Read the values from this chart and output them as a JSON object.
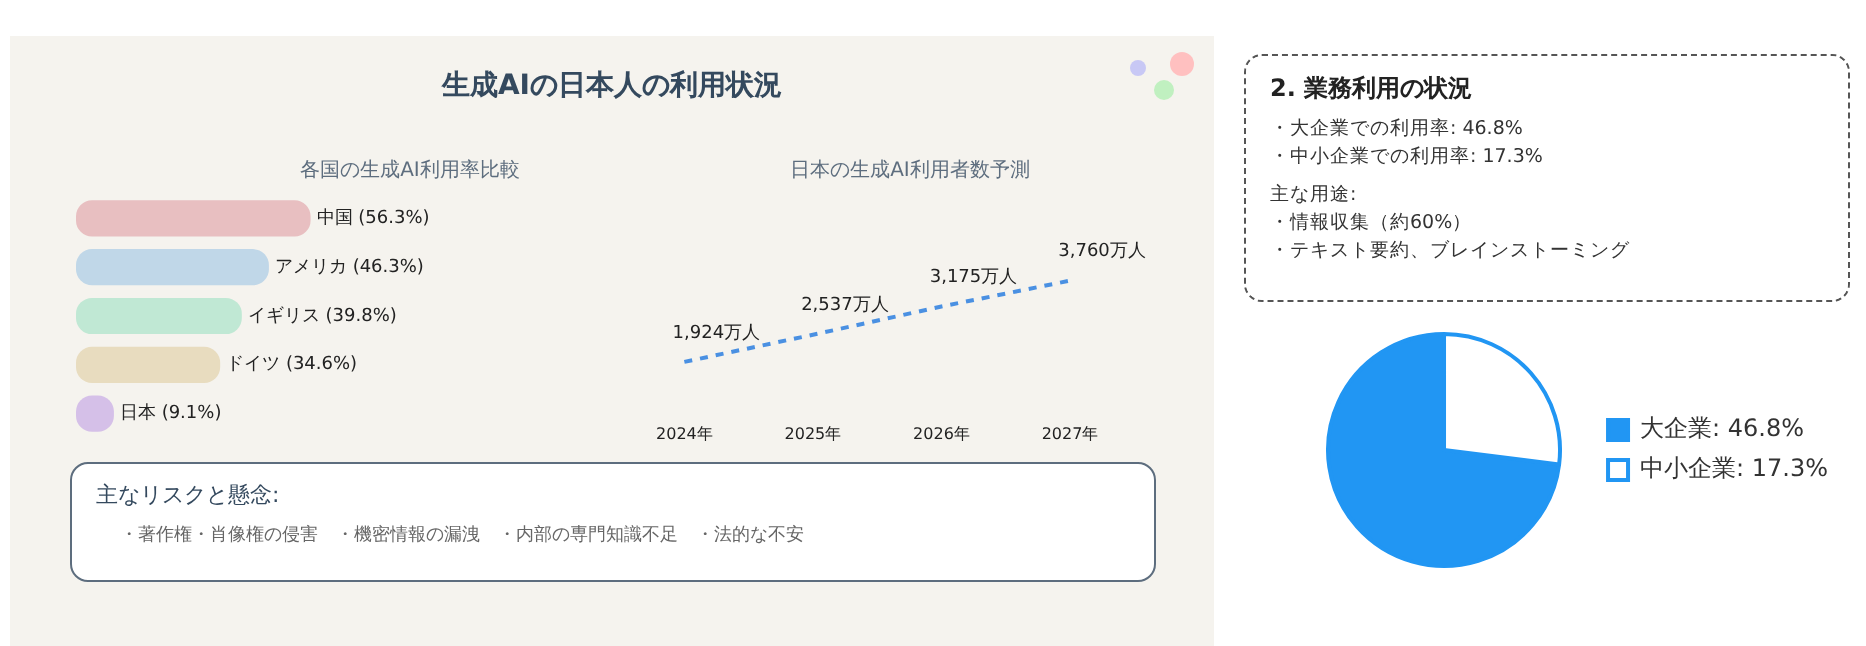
{
  "chart_data": [
    {
      "type": "other",
      "title": "生成AIの日本人の利用状況"
    },
    {
      "type": "bar",
      "orientation": "horizontal",
      "title": "各国の生成AI利用率比較",
      "categories": [
        null,
        null,
        null,
        null,
        null
      ],
      "values": [
        56.3,
        46.3,
        39.8,
        34.6,
        9.1
      ],
      "value_labels": [
        "中国 (56.3%)",
        "アメリカ (46.3%)",
        "イギリス (39.8%)",
        "ドイツ (34.6%)",
        "日本 (9.1%)"
      ],
      "colors": [
        "#e8bfc1",
        "#c0d7e8",
        "#c0e8d4",
        "#e8dcbf",
        "#d5c0e8"
      ],
      "grid": false,
      "legend": false
    },
    {
      "type": "line",
      "title": "日本の生成AI利用者数予測",
      "categories": [
        "2024年",
        "2025年",
        "2026年",
        "2027年"
      ],
      "values": [
        1924,
        2537,
        3175,
        3760
      ],
      "value_labels": [
        "1,924万人",
        "2,537万人",
        "3,175万人",
        "3,760万人"
      ],
      "color": "#4a90e2",
      "line_style": "dashed",
      "marker": "none",
      "tick_labels": "x",
      "grid": false,
      "legend": false
    },
    {
      "type": "other",
      "title": "主なリスクと懸念:",
      "annotations": [
        "・著作権・肖像権の侵害",
        "・機密情報の漏洩",
        "・内部の専門知識不足",
        "・法的な不安"
      ]
    },
    {
      "type": "other",
      "title": "2. 業務利用の状況",
      "annotations": [
        "・大企業での利用率: 46.8%",
        "・中小企業での利用率: 17.3%",
        "主な用途:",
        "・情報収集（約60%）",
        "・テキスト要約、ブレインストーミング"
      ]
    },
    {
      "type": "pie",
      "categories": [
        "大企業: 46.8%",
        "中小企業: 17.3%"
      ],
      "values": [
        46.8,
        17.3
      ],
      "colors": [
        "#2196f3",
        "#ffffff"
      ],
      "legend": "right"
    }
  ]
}
